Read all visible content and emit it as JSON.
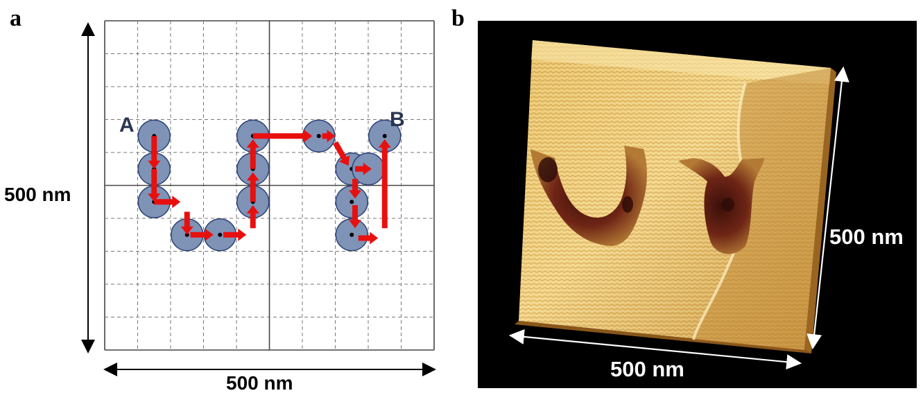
{
  "panel_a": {
    "letter": "a",
    "x_dimension_label": "500 nm",
    "y_dimension_label": "500 nm",
    "start_label": "A",
    "end_label": "B",
    "colors": {
      "disc": "#7f93b6",
      "disc_edge": "#2d4377",
      "arrow": "#e8100f",
      "grid": "#555555"
    },
    "path_points": [
      [
        1.5,
        3.5
      ],
      [
        1.5,
        4.5
      ],
      [
        1.5,
        5.5
      ],
      [
        2.5,
        6.5
      ],
      [
        3.5,
        6.5
      ],
      [
        4.5,
        5.5
      ],
      [
        4.5,
        4.5
      ],
      [
        4.5,
        3.5
      ],
      [
        6.5,
        3.5
      ],
      [
        7.5,
        4.5
      ],
      [
        8.0,
        4.5
      ],
      [
        7.5,
        5.5
      ],
      [
        7.5,
        6.5
      ],
      [
        8.5,
        3.5
      ]
    ],
    "grid_divisions": 10,
    "grid_unit": "cell"
  },
  "panel_b": {
    "letter": "b",
    "x_dimension_label": "500 nm",
    "y_dimension_label": "500 nm",
    "colors": {
      "background": "#000000",
      "surface_light": "#f3d589",
      "surface_mid": "#cfa24a",
      "surface_dark": "#8c5a1a",
      "pit_dark": "#3a0f0a"
    }
  }
}
